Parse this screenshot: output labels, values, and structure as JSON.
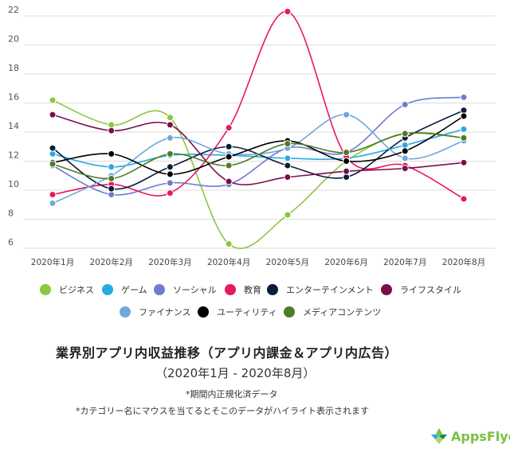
{
  "chart_data": {
    "type": "line",
    "categories": [
      "2020年1月",
      "2020年2月",
      "2020年3月",
      "2020年4月",
      "2020年5月",
      "2020年6月",
      "2020年7月",
      "2020年8月"
    ],
    "ylim": [
      6,
      22
    ],
    "yticks": [
      6,
      8,
      10,
      12,
      14,
      16,
      18,
      20,
      22
    ],
    "grid": true,
    "legend_placement": "bottom",
    "series": [
      {
        "name": "ビジネス",
        "color": "#8dc63f",
        "values": [
          16.2,
          14.5,
          15.0,
          6.3,
          8.3,
          12.0,
          13.9,
          13.6
        ]
      },
      {
        "name": "ゲーム",
        "color": "#29abe2",
        "values": [
          12.5,
          11.6,
          12.4,
          12.4,
          12.2,
          12.2,
          13.1,
          14.2
        ]
      },
      {
        "name": "ソーシャル",
        "color": "#6f7bd1",
        "values": [
          11.7,
          9.7,
          10.5,
          10.4,
          12.9,
          12.6,
          15.9,
          16.4
        ]
      },
      {
        "name": "教育",
        "color": "#e8185c",
        "values": [
          9.7,
          10.4,
          9.8,
          14.3,
          22.3,
          12.3,
          11.7,
          9.4
        ]
      },
      {
        "name": "エンターテインメント",
        "color": "#0d1b3e",
        "values": [
          12.9,
          10.1,
          11.6,
          13.0,
          11.7,
          10.9,
          13.6,
          15.5
        ]
      },
      {
        "name": "ライフスタイル",
        "color": "#7b0e4c",
        "values": [
          15.2,
          14.1,
          14.5,
          10.6,
          10.9,
          11.3,
          11.5,
          11.9
        ]
      },
      {
        "name": "ファイナンス",
        "color": "#6fa8dc",
        "values": [
          9.1,
          11.0,
          13.6,
          12.5,
          12.9,
          15.2,
          12.2,
          13.4
        ]
      },
      {
        "name": "ユーティリティ",
        "color": "#000000",
        "values": [
          11.9,
          12.5,
          11.1,
          12.3,
          13.4,
          12.0,
          12.7,
          15.1
        ]
      },
      {
        "name": "メディアコンテンツ",
        "color": "#4f7b23",
        "values": [
          11.8,
          10.8,
          12.5,
          11.7,
          13.2,
          12.6,
          13.9,
          13.6
        ]
      }
    ]
  },
  "title": "業界別アプリ内収益推移（アプリ内課金＆アプリ内広告）",
  "subtitle": "（2020年1月 - 2020年8月）",
  "note1": "*期間内正規化済データ",
  "note2": "*カテゴリー名にマウスを当てるとそこのデータがハイライト表示されます",
  "logo": {
    "text": "AppsFlyer",
    "color": "#7ac143"
  }
}
